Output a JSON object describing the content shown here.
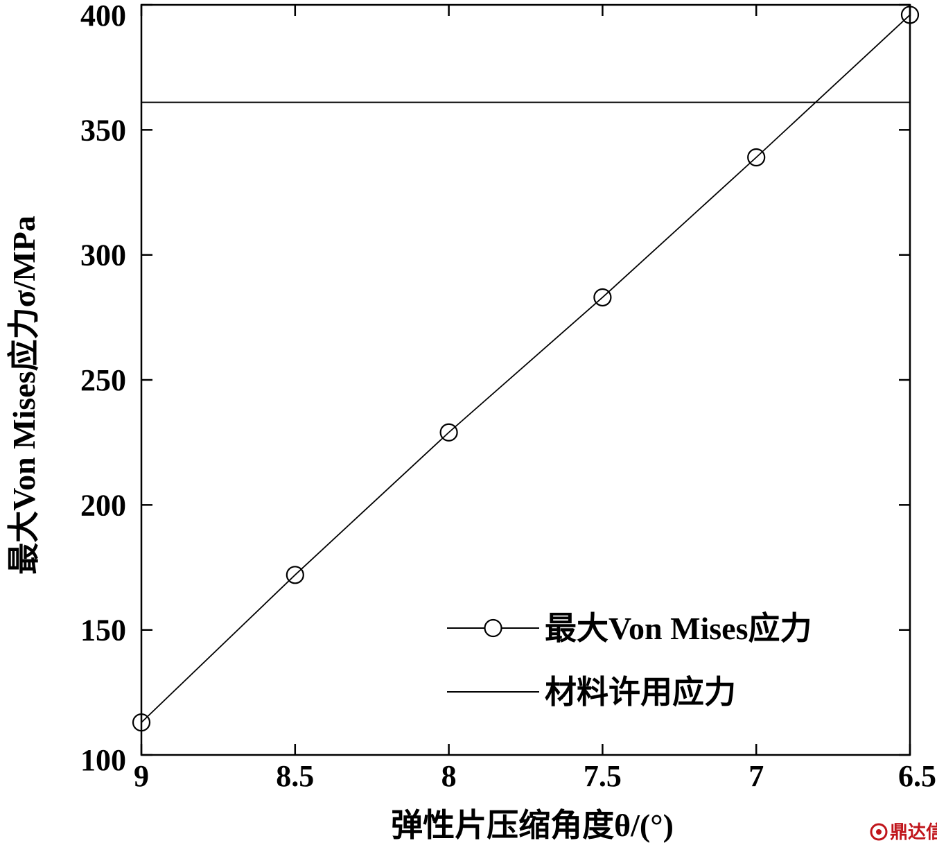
{
  "chart_data": {
    "type": "line",
    "x_axis": {
      "label": "弹性片压缩角度θ/(°)",
      "range": [
        9,
        6.5
      ],
      "reversed": true,
      "ticks": [
        9,
        8.5,
        8,
        7.5,
        7,
        6.5
      ],
      "tick_labels": [
        "9",
        "8.5",
        "8",
        "7.5",
        "7",
        "6.5"
      ]
    },
    "y_axis": {
      "label": "最大Von Mises应力σ/MPa",
      "range": [
        100,
        400
      ],
      "ticks": [
        100,
        150,
        200,
        250,
        300,
        350,
        400
      ],
      "tick_labels": [
        "100",
        "150",
        "200",
        "250",
        "300",
        "350",
        "400"
      ]
    },
    "grid": false,
    "legend_position": "bottom-right",
    "series": [
      {
        "name": "最大Von Mises应力",
        "marker": "circle",
        "color": "#000000",
        "x": [
          9,
          8.5,
          8,
          7.5,
          7,
          6.5
        ],
        "y": [
          113,
          172,
          229,
          283,
          339,
          396
        ]
      },
      {
        "name": "材料许用应力",
        "marker": "none",
        "color": "#000000",
        "type": "hline",
        "y": 361
      }
    ]
  },
  "watermark": {
    "text": "鼎达信"
  }
}
